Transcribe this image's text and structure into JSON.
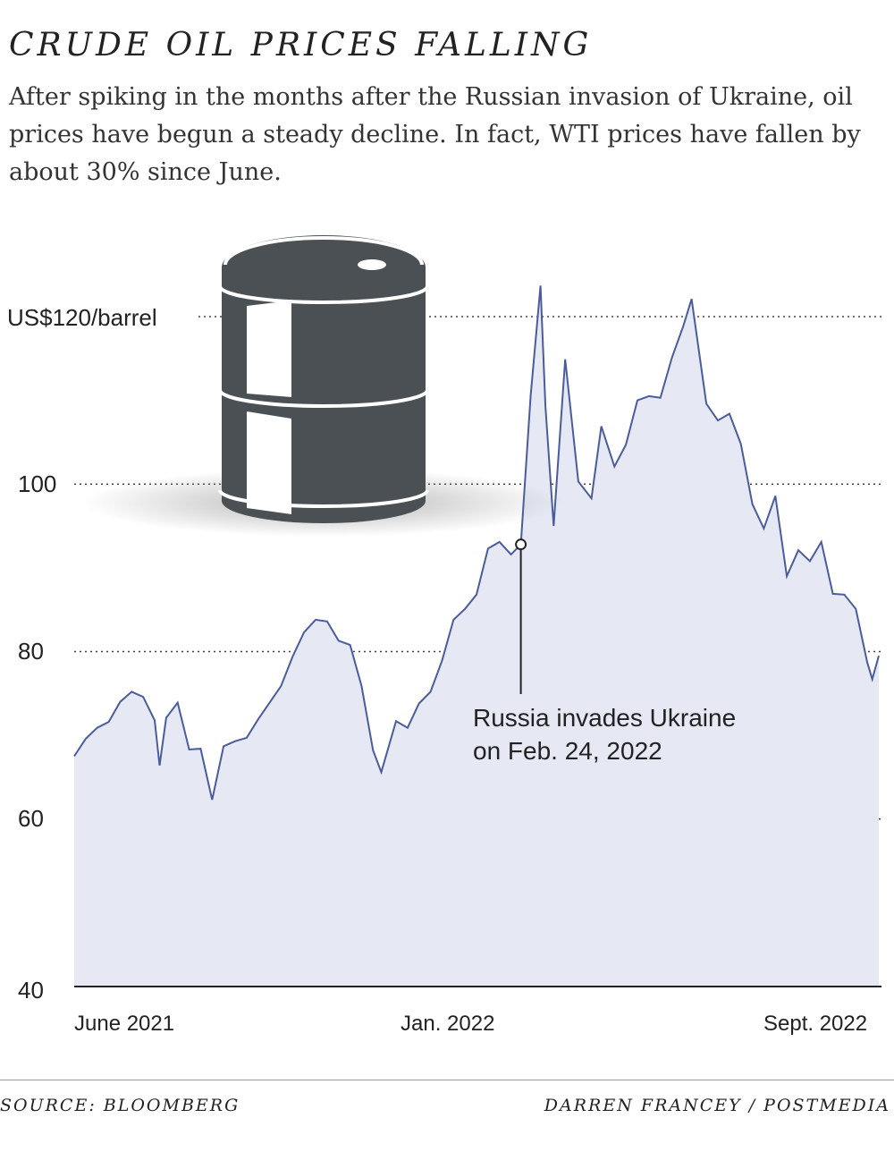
{
  "header": {
    "title": "CRUDE OIL PRICES FALLING",
    "subtitle": "After spiking in the months after the Russian invasion of Ukraine, oil prices have begun a steady decline. In fact, WTI prices have fallen by about 30% since June."
  },
  "footer": {
    "source": "SOURCE: BLOOMBERG",
    "credit": "DARREN FRANCEY / POSTMEDIA"
  },
  "colors": {
    "line": "#4a5c9c",
    "area": "#e6e8f3",
    "grid": "#444444",
    "barrel": "#4a5053"
  },
  "icons": [
    "oil-barrel-icon"
  ],
  "chart_data": {
    "type": "area",
    "title": "CRUDE OIL PRICES FALLING",
    "ylim": [
      40,
      120
    ],
    "yticks": [
      {
        "value": 120,
        "label": "US$120/barrel"
      },
      {
        "value": 100,
        "label": "100"
      },
      {
        "value": 80,
        "label": "80"
      },
      {
        "value": 60,
        "label": "60"
      },
      {
        "value": 40,
        "label": "40"
      }
    ],
    "xticks": [
      {
        "value": "2021-06",
        "label": "June 2021"
      },
      {
        "value": "2022-01",
        "label": "Jan. 2022"
      },
      {
        "value": "2022-09",
        "label": "Sept. 2022"
      }
    ],
    "grid": true,
    "series": [
      {
        "x": [
          "2021-05-28",
          "2021-06-04",
          "2021-06-11",
          "2021-06-18",
          "2021-06-25",
          "2021-07-02",
          "2021-07-09",
          "2021-07-16",
          "2021-07-19",
          "2021-07-23",
          "2021-07-30",
          "2021-08-06",
          "2021-08-13",
          "2021-08-20",
          "2021-08-27",
          "2021-09-03",
          "2021-09-10",
          "2021-09-17",
          "2021-09-24",
          "2021-10-01",
          "2021-10-08",
          "2021-10-15",
          "2021-10-22",
          "2021-10-29",
          "2021-11-05",
          "2021-11-12",
          "2021-11-19",
          "2021-11-26",
          "2021-12-01",
          "2021-12-10",
          "2021-12-17",
          "2021-12-24",
          "2021-12-31",
          "2022-01-07",
          "2022-01-14",
          "2022-01-21",
          "2022-01-28",
          "2022-02-04",
          "2022-02-11",
          "2022-02-18",
          "2022-02-24",
          "2022-03-02",
          "2022-03-08",
          "2022-03-11",
          "2022-03-16",
          "2022-03-23",
          "2022-03-31",
          "2022-04-08",
          "2022-04-14",
          "2022-04-22",
          "2022-04-29",
          "2022-05-06",
          "2022-05-13",
          "2022-05-20",
          "2022-05-27",
          "2022-06-03",
          "2022-06-08",
          "2022-06-17",
          "2022-06-24",
          "2022-07-01",
          "2022-07-08",
          "2022-07-15",
          "2022-07-22",
          "2022-07-29",
          "2022-08-05",
          "2022-08-12",
          "2022-08-19",
          "2022-08-26",
          "2022-09-02",
          "2022-09-09",
          "2022-09-16",
          "2022-09-23",
          "2022-09-26",
          "2022-09-30"
        ],
        "values": [
          67.5,
          69.6,
          70.9,
          71.6,
          74.0,
          75.2,
          74.6,
          71.8,
          66.4,
          72.1,
          73.9,
          68.3,
          68.4,
          62.3,
          68.7,
          69.3,
          69.7,
          71.9,
          73.9,
          75.9,
          79.4,
          82.3,
          83.8,
          83.6,
          81.3,
          80.8,
          75.9,
          68.2,
          65.6,
          71.7,
          70.9,
          73.8,
          75.2,
          78.9,
          83.8,
          85.1,
          86.8,
          92.3,
          93.1,
          91.6,
          92.8,
          110.6,
          123.7,
          109.3,
          95.0,
          114.9,
          100.3,
          98.3,
          106.9,
          102.1,
          104.7,
          110.0,
          110.5,
          110.3,
          115.1,
          118.9,
          122.1,
          109.6,
          107.6,
          108.4,
          104.8,
          97.6,
          94.7,
          98.6,
          89.0,
          92.1,
          90.8,
          93.1,
          86.9,
          86.8,
          85.1,
          78.7,
          76.7,
          79.5
        ]
      }
    ],
    "annotations": [
      {
        "x": "2022-02-24",
        "y": 92.8,
        "text": "Russia invades Ukraine",
        "text2": "on Feb. 24, 2022"
      }
    ]
  }
}
